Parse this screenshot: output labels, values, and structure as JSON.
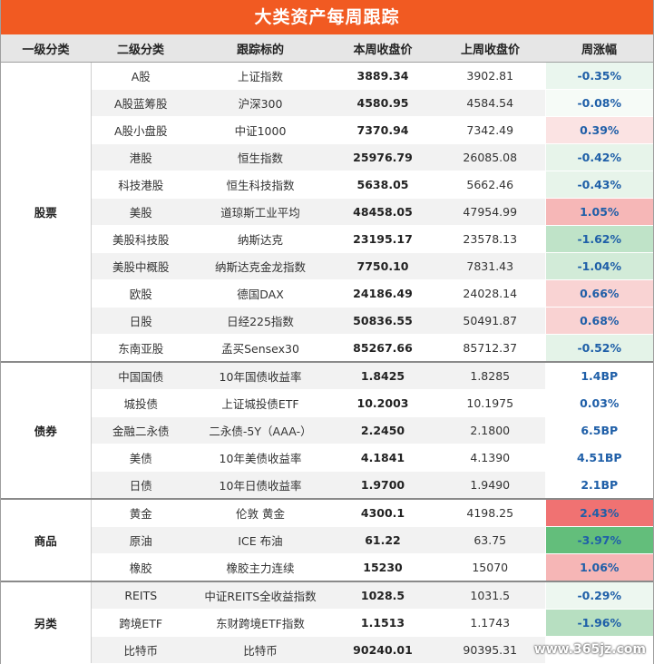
{
  "title": "大类资产每周跟踪",
  "headers": [
    "一级分类",
    "二级分类",
    "跟踪标的",
    "本周收盘价",
    "上周收盘价",
    "周涨幅"
  ],
  "groups": [
    {
      "name": "股票",
      "rows": [
        {
          "sub": "A股",
          "target": "上证指数",
          "cur": "3889.34",
          "prev": "3902.81",
          "chg": "-0.35%",
          "shade": "#eaf6ee"
        },
        {
          "sub": "A股蓝筹股",
          "target": "沪深300",
          "cur": "4580.95",
          "prev": "4584.54",
          "chg": "-0.08%",
          "shade": "#f6fbf7"
        },
        {
          "sub": "A股小盘股",
          "target": "中证1000",
          "cur": "7370.94",
          "prev": "7342.49",
          "chg": "0.39%",
          "shade": "#fbe3e3"
        },
        {
          "sub": "港股",
          "target": "恒生指数",
          "cur": "25976.79",
          "prev": "26085.08",
          "chg": "-0.42%",
          "shade": "#e7f4ea"
        },
        {
          "sub": "科技港股",
          "target": "恒生科技指数",
          "cur": "5638.05",
          "prev": "5662.46",
          "chg": "-0.43%",
          "shade": "#e7f4ea"
        },
        {
          "sub": "美股",
          "target": "道琼斯工业平均",
          "cur": "48458.05",
          "prev": "47954.99",
          "chg": "1.05%",
          "shade": "#f6b7b7"
        },
        {
          "sub": "美股科技股",
          "target": "纳斯达克",
          "cur": "23195.17",
          "prev": "23578.13",
          "chg": "-1.62%",
          "shade": "#bfe3c8"
        },
        {
          "sub": "美股中概股",
          "target": "纳斯达克金龙指数",
          "cur": "7750.10",
          "prev": "7831.43",
          "chg": "-1.04%",
          "shade": "#d2ebd8"
        },
        {
          "sub": "欧股",
          "target": "德国DAX",
          "cur": "24186.49",
          "prev": "24028.14",
          "chg": "0.66%",
          "shade": "#f9d3d3"
        },
        {
          "sub": "日股",
          "target": "日经225指数",
          "cur": "50836.55",
          "prev": "50491.87",
          "chg": "0.68%",
          "shade": "#f9d2d2"
        },
        {
          "sub": "东南亚股",
          "target": "孟买Sensex30",
          "cur": "85267.66",
          "prev": "85712.37",
          "chg": "-0.52%",
          "shade": "#e4f3e8"
        }
      ]
    },
    {
      "name": "债券",
      "rows": [
        {
          "sub": "中国国债",
          "target": "10年国债收益率",
          "cur": "1.8425",
          "prev": "1.8285",
          "chg": "1.4BP",
          "shade": "#ffffff"
        },
        {
          "sub": "城投债",
          "target": "上证城投债ETF",
          "cur": "10.2003",
          "prev": "10.1975",
          "chg": "0.03%",
          "shade": "#ffffff"
        },
        {
          "sub": "金融二永债",
          "target": "二永债-5Y（AAA-）",
          "cur": "2.2450",
          "prev": "2.1800",
          "chg": "6.5BP",
          "shade": "#ffffff"
        },
        {
          "sub": "美债",
          "target": "10年美债收益率",
          "cur": "4.1841",
          "prev": "4.1390",
          "chg": "4.51BP",
          "shade": "#ffffff"
        },
        {
          "sub": "日债",
          "target": "10年日债收益率",
          "cur": "1.9700",
          "prev": "1.9490",
          "chg": "2.1BP",
          "shade": "#ffffff"
        }
      ]
    },
    {
      "name": "商品",
      "rows": [
        {
          "sub": "黄金",
          "target": "伦敦 黄金",
          "cur": "4300.1",
          "prev": "4198.25",
          "chg": "2.43%",
          "shade": "#f07272"
        },
        {
          "sub": "原油",
          "target": "ICE 布油",
          "cur": "61.22",
          "prev": "63.75",
          "chg": "-3.97%",
          "shade": "#63be7b"
        },
        {
          "sub": "橡胶",
          "target": "橡胶主力连续",
          "cur": "15230",
          "prev": "15070",
          "chg": "1.06%",
          "shade": "#f6b6b6"
        }
      ]
    },
    {
      "name": "另类",
      "rows": [
        {
          "sub": "REITS",
          "target": "中证REITS全收益指数",
          "cur": "1028.5",
          "prev": "1031.5",
          "chg": "-0.29%",
          "shade": "#edf7f0"
        },
        {
          "sub": "跨境ETF",
          "target": "东财跨境ETF指数",
          "cur": "1.1513",
          "prev": "1.1743",
          "chg": "-1.96%",
          "shade": "#b7dfc1"
        },
        {
          "sub": "比特币",
          "target": "比特币",
          "cur": "90240.01",
          "prev": "90395.31",
          "chg": "",
          "shade": "#ffffff"
        }
      ]
    }
  ],
  "watermark": "www.365jz.com"
}
